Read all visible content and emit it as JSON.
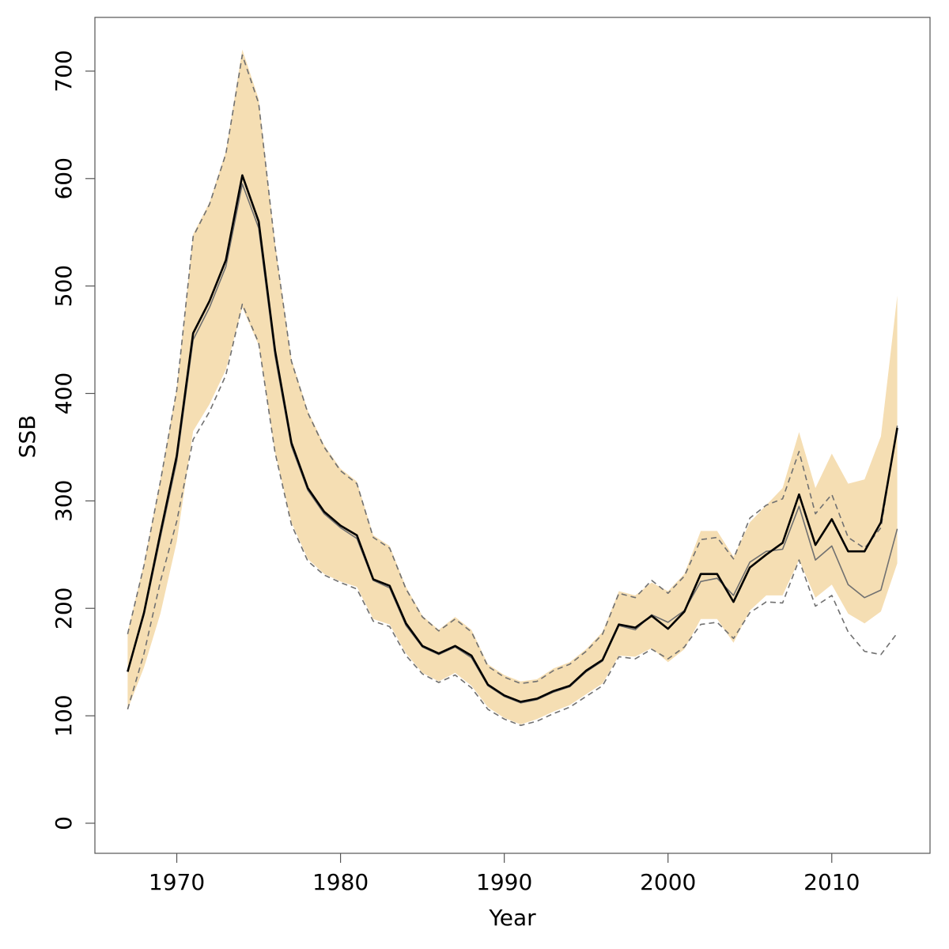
{
  "chart_data": {
    "type": "line",
    "xlabel": "Year",
    "ylabel": "SSB",
    "xlim": [
      1965,
      2016
    ],
    "ylim": [
      -28,
      750
    ],
    "x_ticks": [
      1970,
      1980,
      1990,
      2000,
      2010
    ],
    "y_ticks": [
      0,
      100,
      200,
      300,
      400,
      500,
      600,
      700
    ],
    "x": [
      1967,
      1968,
      1969,
      1970,
      1971,
      1972,
      1973,
      1974,
      1975,
      1976,
      1977,
      1978,
      1979,
      1980,
      1981,
      1982,
      1983,
      1984,
      1985,
      1986,
      1987,
      1988,
      1989,
      1990,
      1991,
      1992,
      1993,
      1994,
      1995,
      1996,
      1997,
      1998,
      1999,
      2000,
      2001,
      2002,
      2003,
      2004,
      2005,
      2006,
      2007,
      2008,
      2009,
      2010,
      2011,
      2012,
      2013,
      2014
    ],
    "band": {
      "lower": [
        106,
        145,
        195,
        262,
        365,
        390,
        422,
        480,
        445,
        345,
        280,
        246,
        232,
        225,
        220,
        190,
        185,
        158,
        140,
        132,
        140,
        128,
        108,
        98,
        92,
        97,
        104,
        110,
        120,
        130,
        156,
        155,
        163,
        150,
        162,
        190,
        190,
        168,
        198,
        212,
        212,
        245,
        210,
        222,
        195,
        186,
        197,
        242
      ],
      "upper": [
        178,
        242,
        320,
        405,
        548,
        578,
        625,
        720,
        674,
        540,
        432,
        384,
        352,
        330,
        318,
        268,
        258,
        220,
        193,
        180,
        192,
        180,
        148,
        138,
        132,
        134,
        144,
        150,
        162,
        178,
        216,
        212,
        224,
        216,
        232,
        272,
        272,
        248,
        280,
        296,
        312,
        364,
        312,
        344,
        316,
        320,
        360,
        491
      ]
    },
    "series": [
      {
        "values": [
          141,
          196,
          270,
          342,
          456,
          486,
          524,
          603,
          560,
          440,
          354,
          312,
          290,
          277,
          268,
          227,
          221,
          186,
          165,
          158,
          165,
          156,
          129,
          119,
          113,
          116,
          123,
          128,
          142,
          152,
          185,
          182,
          193,
          181,
          197,
          232,
          232,
          206,
          238,
          250,
          261,
          306,
          259,
          283,
          253,
          253,
          280,
          368
        ]
      },
      {
        "values": [
          141,
          194,
          266,
          337,
          450,
          480,
          518,
          595,
          554,
          435,
          351,
          310,
          288,
          275,
          265,
          226,
          219,
          184,
          164,
          157,
          164,
          154,
          128,
          118,
          112,
          115,
          122,
          127,
          141,
          151,
          184,
          180,
          194,
          187,
          198,
          225,
          228,
          212,
          243,
          253,
          255,
          295,
          245,
          258,
          222,
          210,
          217,
          274
        ]
      },
      {
        "values": [
          176,
          240,
          318,
          403,
          546,
          576,
          623,
          715,
          670,
          537,
          430,
          382,
          350,
          328,
          316,
          266,
          256,
          218,
          192,
          179,
          190,
          178,
          146,
          136,
          130,
          132,
          142,
          148,
          160,
          176,
          214,
          210,
          226,
          214,
          230,
          264,
          266,
          246,
          284,
          296,
          302,
          346,
          288,
          306,
          266,
          256,
          275,
          370
        ]
      },
      {
        "values": [
          106,
          158,
          225,
          281,
          357,
          383,
          417,
          483,
          447,
          345,
          278,
          244,
          231,
          224,
          218,
          188,
          183,
          156,
          139,
          131,
          138,
          126,
          106,
          97,
          91,
          95,
          102,
          108,
          118,
          128,
          155,
          153,
          162,
          153,
          164,
          185,
          187,
          172,
          196,
          206,
          205,
          245,
          202,
          212,
          178,
          160,
          157,
          177
        ]
      }
    ],
    "colors": {
      "band": "#F5DEB3",
      "line": "#000000",
      "line_thin": "#707070",
      "dashed": "#707070",
      "box": "#555555"
    }
  }
}
